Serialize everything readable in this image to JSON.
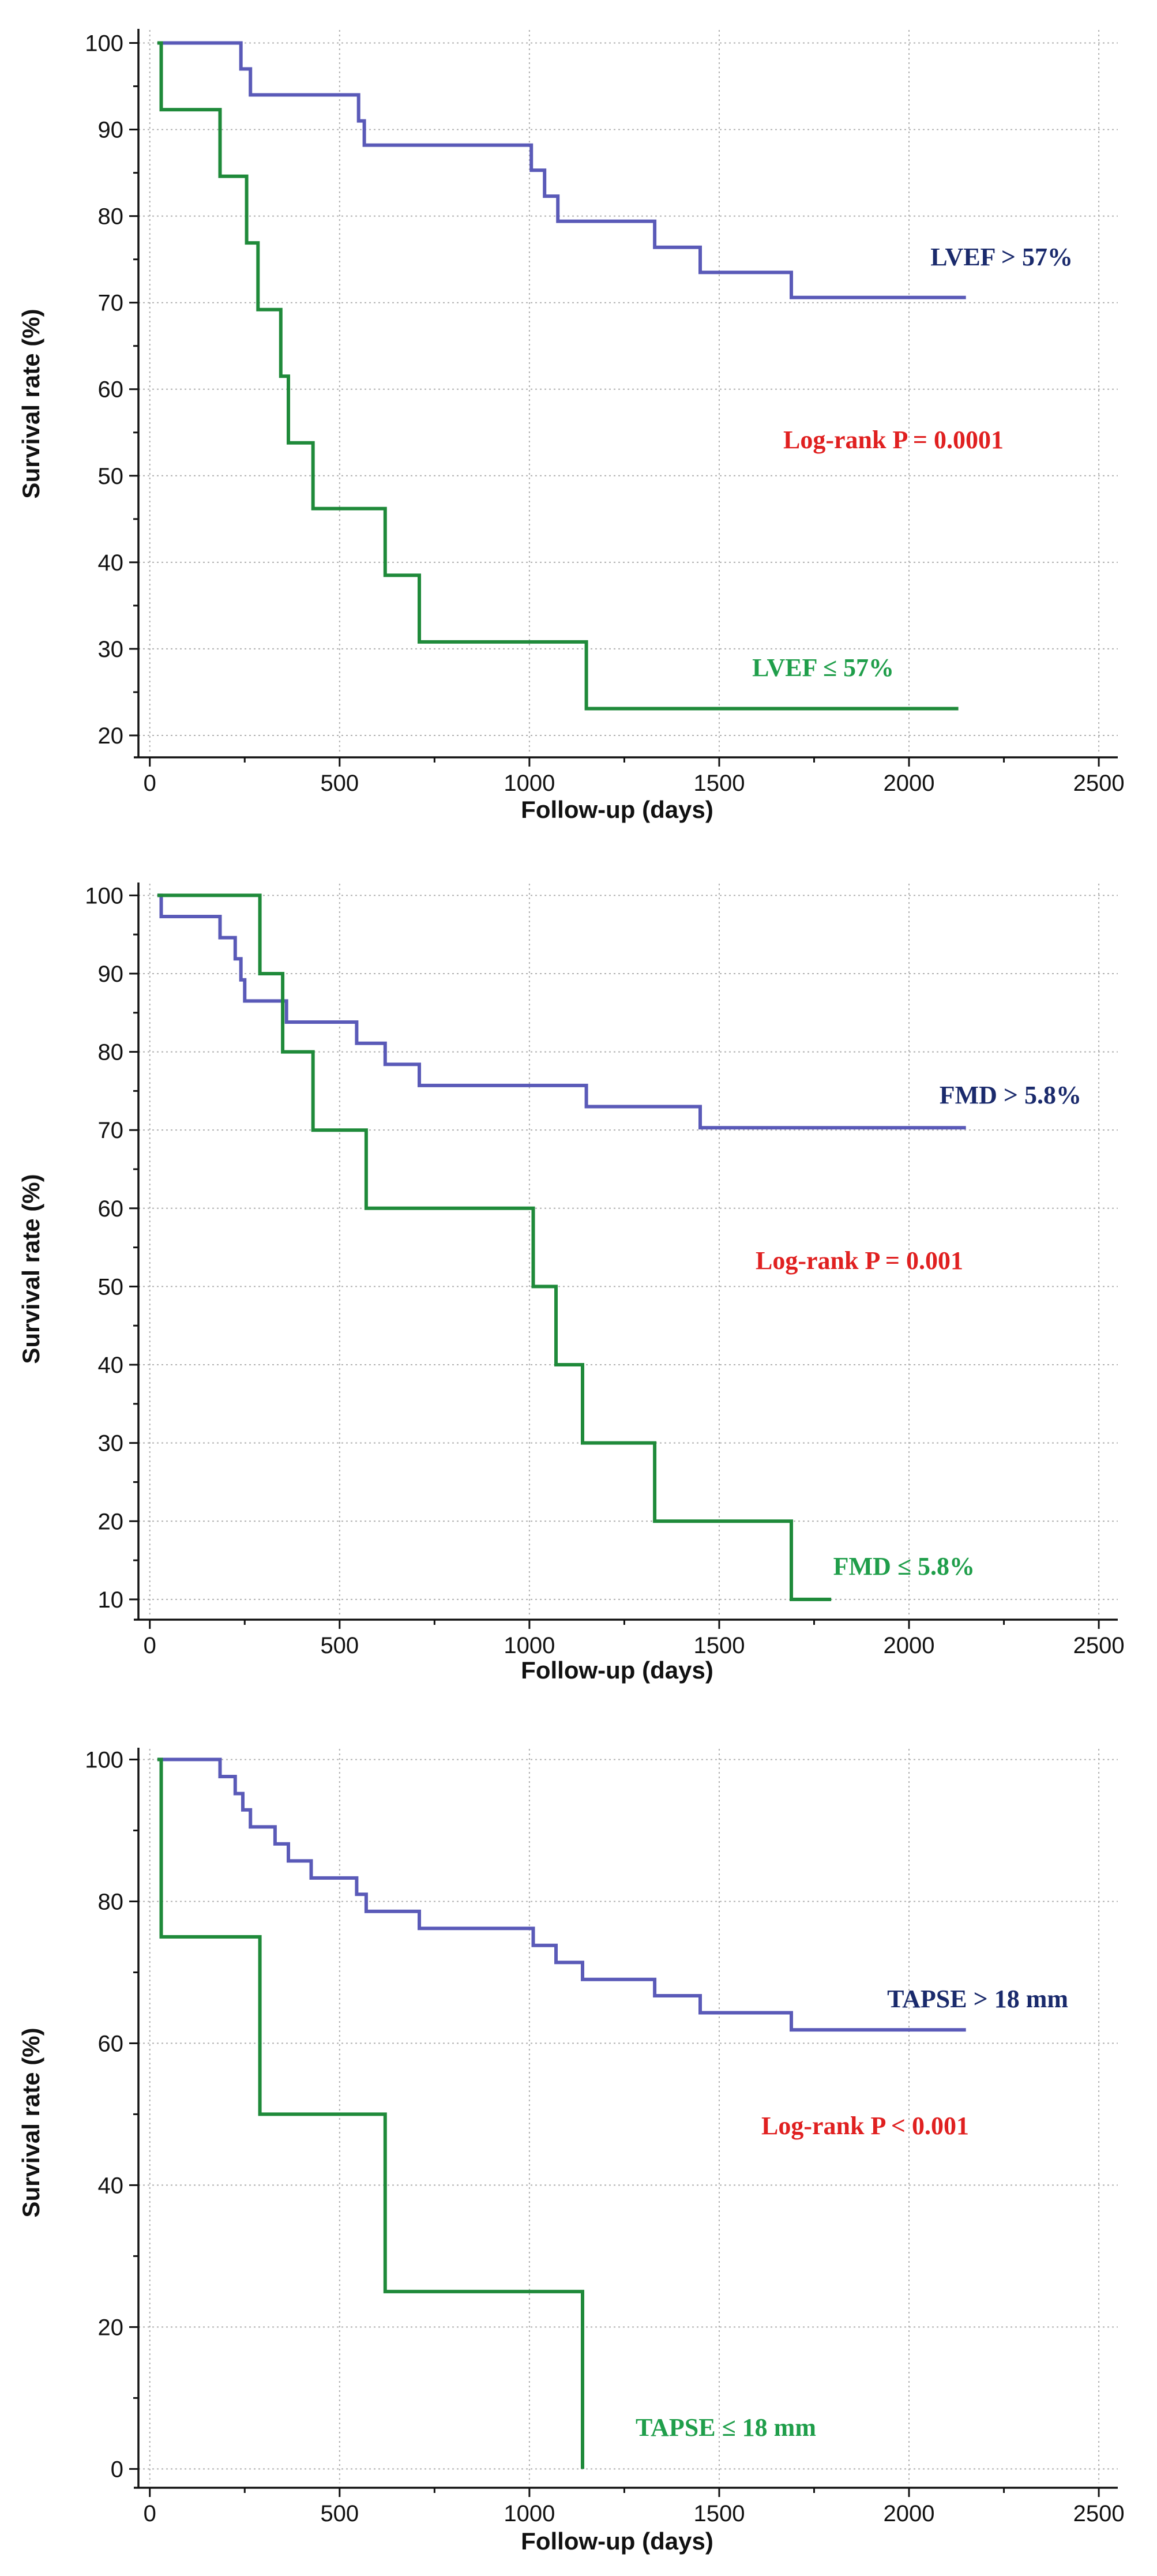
{
  "chart_data": [
    {
      "type": "line",
      "subtype": "kaplan-meier",
      "xlabel": "Follow-up (days)",
      "ylabel": "Survival rate (%)",
      "xlim": [
        -30,
        2550
      ],
      "ylim": [
        18,
        101.5
      ],
      "xticks": [
        0,
        500,
        1000,
        1500,
        2000,
        2500
      ],
      "yticks": [
        20,
        30,
        40,
        50,
        60,
        70,
        80,
        90,
        100
      ],
      "grid": true,
      "series": [
        {
          "name": "LVEF > 57%",
          "color": "#5a5ab8",
          "label_color": "#1a2a6c",
          "x": [
            20,
            240,
            265,
            290,
            550,
            565,
            580,
            1005,
            1040,
            1075,
            1330,
            1450,
            1690,
            2150
          ],
          "y": [
            100,
            97,
            94,
            94,
            91,
            88.2,
            88.2,
            85.3,
            82.3,
            79.4,
            76.4,
            73.5,
            70.6,
            70.6
          ]
        },
        {
          "name": "LVEF ≤ 57%",
          "color": "#1f8a3a",
          "label_color": "#1f9e4a",
          "x": [
            20,
            30,
            185,
            255,
            285,
            345,
            365,
            430,
            620,
            710,
            1150,
            2130
          ],
          "y": [
            100,
            92.3,
            84.6,
            76.9,
            69.2,
            61.5,
            53.8,
            46.2,
            38.5,
            30.8,
            23.1,
            23.1
          ]
        }
      ],
      "annotations": [
        {
          "text": "LVEF > 57%",
          "color": "#1a2a6c"
        },
        {
          "text": "Log-rank P = 0.0001",
          "color": "#e02020"
        },
        {
          "text": "LVEF ≤ 57%",
          "color": "#1f9e4a"
        }
      ]
    },
    {
      "type": "line",
      "subtype": "kaplan-meier",
      "xlabel": "Follow-up (days)",
      "ylabel": "Survival rate (%)",
      "xlim": [
        -30,
        2550
      ],
      "ylim": [
        8,
        101.5
      ],
      "xticks": [
        0,
        500,
        1000,
        1500,
        2000,
        2500
      ],
      "yticks": [
        10,
        20,
        30,
        40,
        50,
        60,
        70,
        80,
        90,
        100
      ],
      "grid": true,
      "series": [
        {
          "name": "FMD > 5.8%",
          "color": "#5a5ab8",
          "label_color": "#1a2a6c",
          "x": [
            20,
            30,
            185,
            225,
            240,
            250,
            270,
            360,
            545,
            620,
            710,
            1150,
            1450,
            2150
          ],
          "y": [
            100,
            97.3,
            94.6,
            91.9,
            89.2,
            86.5,
            86.5,
            83.8,
            81.1,
            78.4,
            75.7,
            73,
            70.3,
            70.3
          ]
        },
        {
          "name": "FMD ≤ 5.8%",
          "color": "#1f8a3a",
          "label_color": "#1f9e4a",
          "x": [
            20,
            290,
            350,
            430,
            570,
            1010,
            1070,
            1140,
            1330,
            1690,
            1795
          ],
          "y": [
            100,
            90,
            80,
            70,
            60,
            50,
            40,
            30,
            20,
            10,
            10
          ]
        }
      ],
      "annotations": [
        {
          "text": "FMD > 5.8%",
          "color": "#1a2a6c"
        },
        {
          "text": "Log-rank P = 0.001",
          "color": "#e02020"
        },
        {
          "text": "FMD ≤ 5.8%",
          "color": "#1f9e4a"
        }
      ]
    },
    {
      "type": "line",
      "subtype": "kaplan-meier",
      "xlabel": "Follow-up (days)",
      "ylabel": "Survival rate (%)",
      "xlim": [
        -30,
        2550
      ],
      "ylim": [
        -2,
        101.5
      ],
      "xticks": [
        0,
        500,
        1000,
        1500,
        2000,
        2500
      ],
      "yticks": [
        0,
        20,
        40,
        60,
        80,
        100
      ],
      "grid": true,
      "series": [
        {
          "name": "TAPSE > 18 mm",
          "color": "#5a5ab8",
          "label_color": "#1a2a6c",
          "x": [
            20,
            185,
            225,
            245,
            265,
            330,
            365,
            425,
            545,
            570,
            710,
            1010,
            1070,
            1140,
            1330,
            1450,
            1690,
            2150
          ],
          "y": [
            100,
            97.6,
            95.2,
            92.9,
            90.5,
            88.1,
            85.7,
            83.3,
            81,
            78.6,
            76.2,
            73.8,
            71.4,
            69,
            66.7,
            64.3,
            61.9,
            61.9
          ]
        },
        {
          "name": "TAPSE ≤ 18 mm",
          "color": "#1f8a3a",
          "label_color": "#1f9e4a",
          "x": [
            20,
            30,
            290,
            620,
            1140
          ],
          "y": [
            100,
            75,
            50,
            25,
            0
          ]
        }
      ],
      "annotations": [
        {
          "text": "TAPSE > 18 mm",
          "color": "#1a2a6c"
        },
        {
          "text": "Log-rank P < 0.001",
          "color": "#e02020"
        },
        {
          "text": "TAPSE ≤ 18 mm",
          "color": "#1f9e4a"
        }
      ]
    }
  ]
}
